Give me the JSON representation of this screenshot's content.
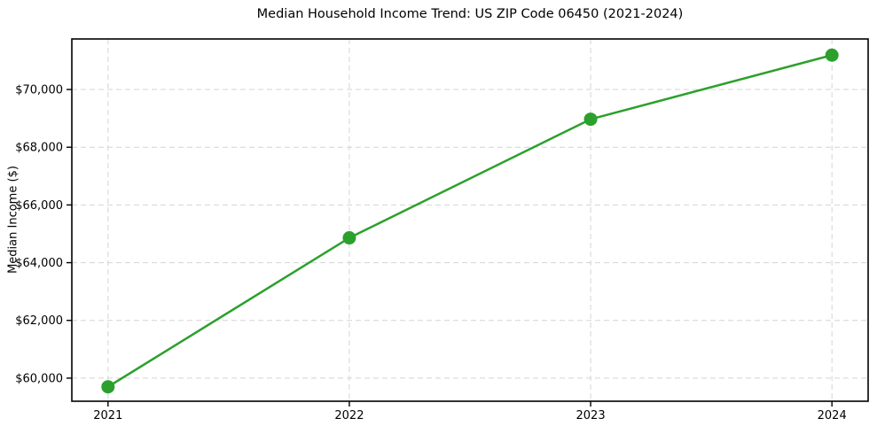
{
  "chart": {
    "title": "Median Household Income Trend: US ZIP Code 06450 (2021-2024)",
    "ylabel": "Median Income ($)"
  },
  "chart_data": {
    "type": "line",
    "title": "Median Household Income Trend: US ZIP Code 06450 (2021-2024)",
    "xlabel": "",
    "ylabel": "Median Income ($)",
    "x": [
      2021,
      2022,
      2023,
      2024
    ],
    "xtick_labels": [
      "2021",
      "2022",
      "2023",
      "2024"
    ],
    "series": [
      {
        "name": "Median Household Income",
        "values": [
          59700,
          64860,
          68970,
          71190
        ]
      }
    ],
    "yticks": [
      60000,
      62000,
      64000,
      66000,
      68000,
      70000
    ],
    "ytick_labels": [
      "$60,000",
      "$62,000",
      "$64,000",
      "$66,000",
      "$68,000",
      "$70,000"
    ],
    "xlim": [
      2020.85,
      2024.15
    ],
    "ylim": [
      59200,
      71750
    ],
    "grid": true,
    "grid_style": "dashed",
    "legend_position": "none",
    "line_color": "#2ca02c",
    "marker": "circle",
    "grid_color": "#d4d4d4",
    "spine_color": "#000000"
  }
}
